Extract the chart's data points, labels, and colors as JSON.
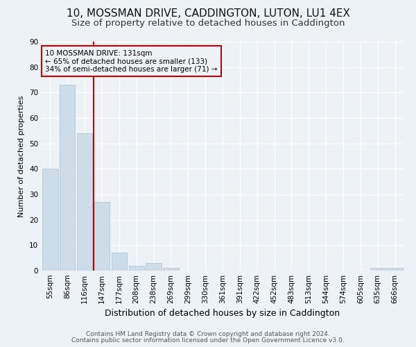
{
  "title1": "10, MOSSMAN DRIVE, CADDINGTON, LUTON, LU1 4EX",
  "title2": "Size of property relative to detached houses in Caddington",
  "xlabel": "Distribution of detached houses by size in Caddington",
  "ylabel": "Number of detached properties",
  "categories": [
    "55sqm",
    "86sqm",
    "116sqm",
    "147sqm",
    "177sqm",
    "208sqm",
    "238sqm",
    "269sqm",
    "299sqm",
    "330sqm",
    "361sqm",
    "391sqm",
    "422sqm",
    "452sqm",
    "483sqm",
    "513sqm",
    "544sqm",
    "574sqm",
    "605sqm",
    "635sqm",
    "666sqm"
  ],
  "values": [
    40,
    73,
    54,
    27,
    7,
    2,
    3,
    1,
    0,
    0,
    0,
    0,
    0,
    0,
    0,
    0,
    0,
    0,
    0,
    1,
    1
  ],
  "bar_color": "#ccdce8",
  "bar_edge_color": "#aabfcf",
  "vline_color": "#cc0000",
  "vline_pos": 2.5,
  "annotation_text": "10 MOSSMAN DRIVE: 131sqm\n← 65% of detached houses are smaller (133)\n34% of semi-detached houses are larger (71) →",
  "annotation_box_color": "#cc0000",
  "ylim": [
    0,
    90
  ],
  "yticks": [
    0,
    10,
    20,
    30,
    40,
    50,
    60,
    70,
    80,
    90
  ],
  "footer1": "Contains HM Land Registry data © Crown copyright and database right 2024.",
  "footer2": "Contains public sector information licensed under the Open Government Licence v3.0.",
  "bg_color": "#edf2f7",
  "grid_color": "#ffffff",
  "title1_fontsize": 11,
  "title2_fontsize": 9.5,
  "ylabel_fontsize": 8,
  "xlabel_fontsize": 9,
  "tick_fontsize": 7.5,
  "annotation_fontsize": 7.5,
  "footer_fontsize": 6.5
}
